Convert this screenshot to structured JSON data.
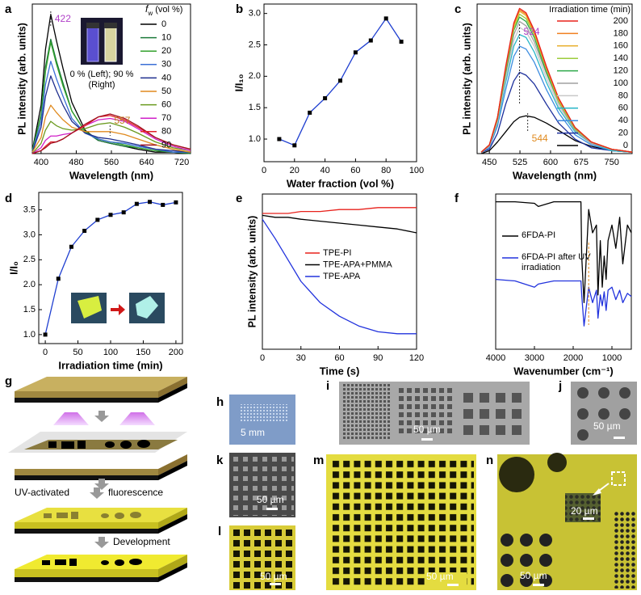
{
  "chart_data": [
    {
      "type": "line",
      "x": [
        380,
        400,
        410,
        422,
        435,
        450,
        470,
        500,
        530,
        557,
        590,
        620,
        660,
        700,
        740
      ],
      "xlim": [
        380,
        740
      ],
      "ylim": [
        0,
        1.02
      ],
      "xticks": [
        400,
        480,
        560,
        640,
        720
      ],
      "xlabel": "Wavelength (nm)",
      "ylabel": "PL intensity (arb. units)",
      "legend_title": {
        "symbol": "f",
        "subscript": "w",
        "unit": "(vol %)"
      },
      "peak_labels": [
        422,
        557
      ],
      "peak_label_colors": [
        "#b040c8",
        "#c08020"
      ],
      "series": [
        {
          "name": "0",
          "color": "#000000",
          "values": [
            0.02,
            0.33,
            0.71,
            0.95,
            0.77,
            0.58,
            0.35,
            0.16,
            0.09,
            0.07,
            0.05,
            0.03,
            0.01,
            0.01,
            0
          ]
        },
        {
          "name": "10",
          "color": "#1b7a3a",
          "values": [
            0.02,
            0.27,
            0.59,
            0.78,
            0.63,
            0.48,
            0.29,
            0.15,
            0.09,
            0.07,
            0.05,
            0.04,
            0.02,
            0.01,
            0
          ]
        },
        {
          "name": "20",
          "color": "#33a02c",
          "values": [
            0.02,
            0.26,
            0.56,
            0.76,
            0.61,
            0.46,
            0.29,
            0.15,
            0.1,
            0.08,
            0.06,
            0.04,
            0.02,
            0.01,
            0.01
          ]
        },
        {
          "name": "30",
          "color": "#3b6fd6",
          "values": [
            0.01,
            0.22,
            0.47,
            0.63,
            0.51,
            0.39,
            0.24,
            0.14,
            0.1,
            0.08,
            0.07,
            0.05,
            0.03,
            0.01,
            0.01
          ]
        },
        {
          "name": "40",
          "color": "#1f2f8f",
          "values": [
            0.01,
            0.18,
            0.39,
            0.53,
            0.43,
            0.33,
            0.22,
            0.14,
            0.11,
            0.1,
            0.08,
            0.06,
            0.03,
            0.02,
            0.01
          ]
        },
        {
          "name": "50",
          "color": "#e08a1e",
          "values": [
            0.01,
            0.11,
            0.25,
            0.33,
            0.28,
            0.23,
            0.18,
            0.15,
            0.15,
            0.15,
            0.13,
            0.1,
            0.06,
            0.03,
            0.01
          ]
        },
        {
          "name": "60",
          "color": "#6a9a1f",
          "values": [
            0,
            0.07,
            0.16,
            0.22,
            0.19,
            0.17,
            0.16,
            0.17,
            0.2,
            0.21,
            0.18,
            0.14,
            0.08,
            0.04,
            0.02
          ]
        },
        {
          "name": "70",
          "color": "#d020c8",
          "values": [
            0,
            0.04,
            0.09,
            0.12,
            0.12,
            0.13,
            0.14,
            0.19,
            0.23,
            0.24,
            0.22,
            0.17,
            0.1,
            0.05,
            0.02
          ]
        },
        {
          "name": "80",
          "color": "#e0202a",
          "values": [
            0,
            0.02,
            0.05,
            0.08,
            0.08,
            0.1,
            0.14,
            0.19,
            0.25,
            0.26,
            0.23,
            0.18,
            0.11,
            0.06,
            0.03
          ]
        },
        {
          "name": "90",
          "color": "#a01020",
          "values": [
            0,
            0.02,
            0.04,
            0.07,
            0.08,
            0.1,
            0.14,
            0.2,
            0.25,
            0.27,
            0.24,
            0.19,
            0.11,
            0.06,
            0.03
          ]
        }
      ]
    },
    {
      "type": "line",
      "markers": true,
      "x": [
        10,
        20,
        30,
        40,
        50,
        60,
        70,
        80,
        90
      ],
      "xlim": [
        0,
        100
      ],
      "ylim": [
        0.64,
        3.15
      ],
      "xticks": [
        0,
        20,
        40,
        60,
        80,
        100
      ],
      "yticks": [
        {
          "value": 1,
          "label": "1.0"
        },
        {
          "value": 1.5,
          "label": "1.5"
        },
        {
          "value": 2,
          "label": "2.0"
        },
        {
          "value": 2.5,
          "label": "2.5"
        },
        {
          "value": 3,
          "label": "3.0"
        }
      ],
      "xlabel": "Water fraction (vol %)",
      "ylabel": "I/I₁₀",
      "series": [
        {
          "color": "#1f3fd0",
          "values": [
            1.0,
            0.9,
            1.42,
            1.65,
            1.93,
            2.38,
            2.57,
            2.92,
            2.55
          ]
        }
      ]
    },
    {
      "type": "line",
      "x": [
        430,
        450,
        470,
        490,
        510,
        524,
        540,
        560,
        590,
        620,
        660,
        700,
        750,
        800
      ],
      "xlim": [
        420,
        800
      ],
      "ylim": [
        0,
        1.03
      ],
      "xticks": [
        450,
        525,
        600,
        675,
        750
      ],
      "xlabel": "Wavelength (nm)",
      "ylabel": "PL intensity (arb. units)",
      "legend_title": "Irradiation time (min)",
      "peak_labels": [
        524,
        544
      ],
      "peak_label_colors": [
        "#b040c8",
        "#e08a1e"
      ],
      "series": [
        {
          "name": "200",
          "color": "#e8221c",
          "values": [
            0.01,
            0.06,
            0.25,
            0.6,
            0.9,
            1,
            0.97,
            0.85,
            0.6,
            0.38,
            0.18,
            0.08,
            0.03,
            0.01
          ]
        },
        {
          "name": "180",
          "color": "#f08020",
          "values": [
            0.01,
            0.06,
            0.25,
            0.59,
            0.89,
            0.99,
            0.96,
            0.84,
            0.59,
            0.38,
            0.18,
            0.08,
            0.03,
            0.01
          ]
        },
        {
          "name": "160",
          "color": "#e8b030",
          "values": [
            0.01,
            0.06,
            0.25,
            0.59,
            0.88,
            0.98,
            0.95,
            0.83,
            0.59,
            0.37,
            0.18,
            0.08,
            0.03,
            0.01
          ]
        },
        {
          "name": "140",
          "color": "#9ccc3c",
          "values": [
            0.01,
            0.06,
            0.24,
            0.58,
            0.86,
            0.96,
            0.93,
            0.82,
            0.58,
            0.36,
            0.17,
            0.08,
            0.03,
            0.01
          ]
        },
        {
          "name": "120",
          "color": "#2ea84a",
          "values": [
            0.01,
            0.06,
            0.24,
            0.56,
            0.85,
            0.94,
            0.91,
            0.8,
            0.56,
            0.36,
            0.17,
            0.08,
            0.03,
            0.01
          ]
        },
        {
          "name": "100",
          "color": "#a0a0a0",
          "values": [
            0.01,
            0.05,
            0.23,
            0.55,
            0.82,
            0.91,
            0.88,
            0.77,
            0.55,
            0.35,
            0.16,
            0.07,
            0.03,
            0.01
          ]
        },
        {
          "name": "80",
          "color": "#c8c8c8",
          "values": [
            0.01,
            0.05,
            0.22,
            0.52,
            0.78,
            0.87,
            0.84,
            0.74,
            0.52,
            0.33,
            0.16,
            0.07,
            0.03,
            0.01
          ]
        },
        {
          "name": "60",
          "color": "#29b6c8",
          "values": [
            0.01,
            0.05,
            0.21,
            0.49,
            0.74,
            0.82,
            0.8,
            0.7,
            0.49,
            0.31,
            0.15,
            0.07,
            0.02,
            0.01
          ]
        },
        {
          "name": "40",
          "color": "#3c8ce0",
          "values": [
            0.01,
            0.04,
            0.19,
            0.44,
            0.67,
            0.74,
            0.72,
            0.63,
            0.44,
            0.28,
            0.13,
            0.06,
            0.02,
            0.01
          ]
        },
        {
          "name": "20",
          "color": "#1c2f9c",
          "values": [
            0.01,
            0.03,
            0.14,
            0.34,
            0.5,
            0.56,
            0.54,
            0.48,
            0.34,
            0.21,
            0.1,
            0.04,
            0.02,
            0.01
          ]
        },
        {
          "name": "0",
          "color": "#000000",
          "values": [
            0,
            0.02,
            0.08,
            0.15,
            0.22,
            0.25,
            0.26,
            0.25,
            0.21,
            0.16,
            0.09,
            0.05,
            0.02,
            0.01
          ]
        }
      ]
    },
    {
      "type": "line",
      "markers": true,
      "x": [
        0,
        20,
        40,
        60,
        80,
        100,
        120,
        140,
        160,
        180,
        200
      ],
      "xlim": [
        -10,
        210
      ],
      "ylim": [
        0.82,
        3.85
      ],
      "xticks": [
        0,
        50,
        100,
        150,
        200
      ],
      "yticks": [
        {
          "value": 1,
          "label": "1.0"
        },
        {
          "value": 1.5,
          "label": "1.5"
        },
        {
          "value": 2,
          "label": "2.0"
        },
        {
          "value": 2.5,
          "label": "2.5"
        },
        {
          "value": 3,
          "label": "3.0"
        },
        {
          "value": 3.5,
          "label": "3.5"
        }
      ],
      "xlabel": "Irradiation time (min)",
      "ylabel": "I/I₀",
      "series": [
        {
          "color": "#1f3fd0",
          "values": [
            1.0,
            2.12,
            2.76,
            3.08,
            3.3,
            3.4,
            3.45,
            3.62,
            3.66,
            3.6,
            3.65
          ]
        }
      ]
    },
    {
      "type": "line",
      "x": [
        0,
        10,
        20,
        30,
        45,
        60,
        75,
        90,
        105,
        120
      ],
      "xlim": [
        0,
        120
      ],
      "ylim": [
        0.2,
        1.0
      ],
      "xticks": [
        0,
        30,
        60,
        90,
        120
      ],
      "xlabel": "Time (s)",
      "ylabel": "PL intensity (arb. units)",
      "series": [
        {
          "name": "TPE-PI",
          "color": "#e8221c",
          "values": [
            0.9,
            0.9,
            0.9,
            0.91,
            0.91,
            0.92,
            0.92,
            0.93,
            0.93,
            0.93
          ]
        },
        {
          "name": "TPE-APA+PMMA",
          "color": "#000000",
          "values": [
            0.89,
            0.88,
            0.88,
            0.87,
            0.86,
            0.85,
            0.84,
            0.83,
            0.82,
            0.8
          ]
        },
        {
          "name": "TPE-APA",
          "color": "#2233dd",
          "values": [
            0.87,
            0.77,
            0.66,
            0.55,
            0.44,
            0.37,
            0.32,
            0.29,
            0.28,
            0.28
          ]
        }
      ]
    },
    {
      "type": "line",
      "x": [
        4000,
        3500,
        3000,
        2900,
        2500,
        2000,
        1800,
        1780,
        1720,
        1600,
        1500,
        1400,
        1360,
        1300,
        1250,
        1200,
        1150,
        1100,
        1000,
        900,
        800,
        720,
        600,
        500
      ],
      "xlim": [
        4000,
        500
      ],
      "ylim": [
        0,
        1
      ],
      "xticks": [
        4000,
        3000,
        2000,
        1000
      ],
      "xlabel": "Wavenumber (cm⁻¹)",
      "series": [
        {
          "name": "6FDA-PI",
          "color": "#000000",
          "values": [
            0.95,
            0.95,
            0.94,
            0.92,
            0.95,
            0.95,
            0.95,
            0.6,
            0.3,
            0.9,
            0.75,
            0.8,
            0.35,
            0.7,
            0.4,
            0.6,
            0.45,
            0.7,
            0.8,
            0.65,
            0.85,
            0.55,
            0.8,
            0.75
          ]
        },
        {
          "name": "6FDA-PI after UV irradiation",
          "color": "#2233dd",
          "values": [
            0.45,
            0.44,
            0.4,
            0.42,
            0.44,
            0.44,
            0.44,
            0.35,
            0.15,
            0.4,
            0.3,
            0.38,
            0.2,
            0.35,
            0.28,
            0.37,
            0.25,
            0.38,
            0.4,
            0.32,
            0.38,
            0.3,
            0.36,
            0.34
          ]
        }
      ]
    }
  ],
  "figure": {
    "panel_letters": [
      "a",
      "b",
      "c",
      "d",
      "e",
      "f",
      "g",
      "h",
      "i",
      "j",
      "k",
      "l",
      "m",
      "n"
    ],
    "inset_a": "0 % (Left); 90 % (Right)",
    "g_steps": [
      "UV-activated",
      "fluorescence",
      "Development"
    ],
    "scale_bars": {
      "h": "5 mm",
      "i": "50 µm",
      "j": "50 µm",
      "k": "50 µm",
      "l": "50 µm",
      "m": "50 µm",
      "n_small": "20 µm",
      "n": "50 µm"
    }
  }
}
